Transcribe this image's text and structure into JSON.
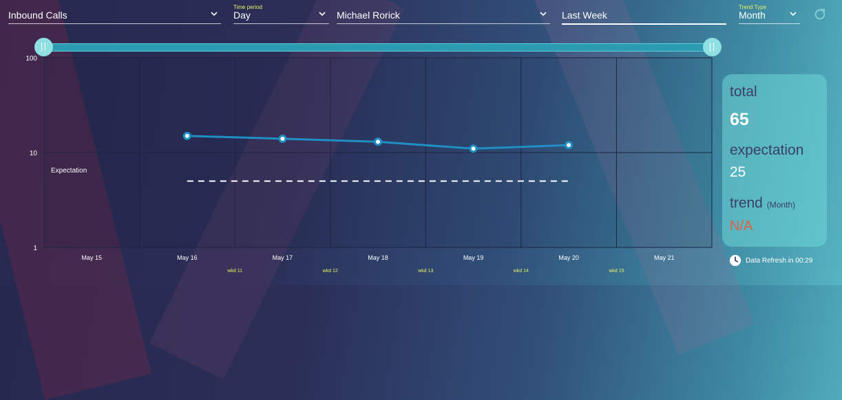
{
  "filters": {
    "metric": {
      "value": "Inbound Calls"
    },
    "time_period": {
      "caption": "Time period",
      "value": "Day"
    },
    "agent": {
      "value": "Michael Rorick"
    },
    "range": {
      "value": "Last Week"
    },
    "trend_type": {
      "caption": "Trend Type",
      "value": "Month"
    }
  },
  "icons": {
    "refresh": "refresh-icon",
    "chevron": "chevron-down-icon",
    "clock": "clock-icon"
  },
  "chart_data": {
    "type": "line",
    "y_scale": "log",
    "ylim": [
      1,
      100
    ],
    "y_ticks": [
      "1",
      "10",
      "100"
    ],
    "x": [
      "May 15",
      "May 16",
      "May 17",
      "May 18",
      "May 19",
      "May 20",
      "May 21"
    ],
    "week_labels": [
      "wkd 11",
      "wkd 12",
      "wkd 13",
      "wkd 14",
      "wkd 15"
    ],
    "series": [
      {
        "values": [
          null,
          15,
          14,
          13,
          11,
          12,
          null
        ]
      }
    ],
    "expectation": {
      "label": "Expectation",
      "value": 5
    },
    "grid": true,
    "colors": {
      "line": "#1f8fc4",
      "expectation": "#ffffff",
      "grid": "#1f233f"
    }
  },
  "stats": {
    "total_label": "total",
    "total_value": "65",
    "expectation_label": "expectation",
    "expectation_value": "25",
    "trend_label": "trend",
    "trend_note": "(Month)",
    "trend_value": "N/A"
  },
  "refresh_info": "Data Refresh in 00:29"
}
